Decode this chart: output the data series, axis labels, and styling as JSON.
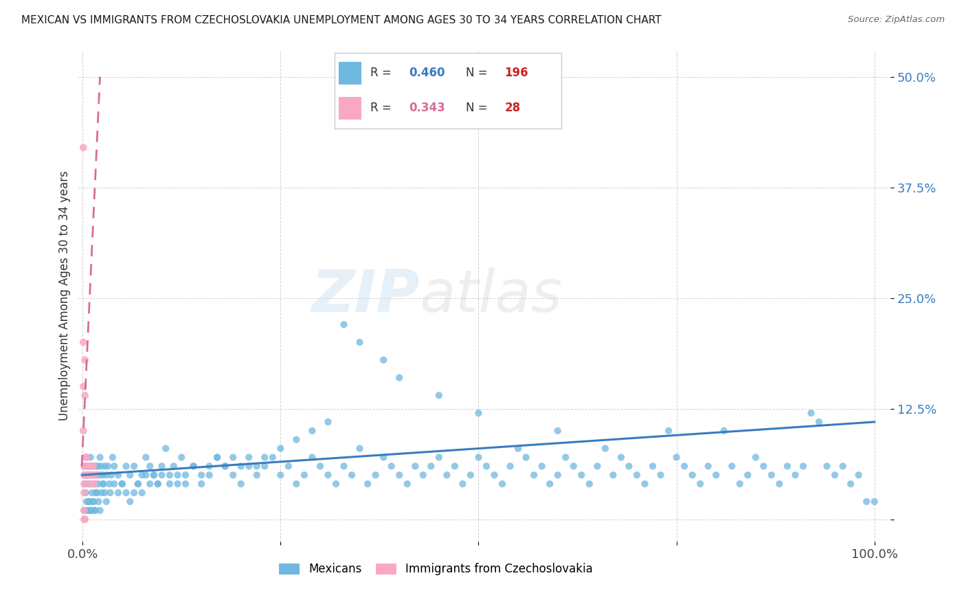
{
  "title": "MEXICAN VS IMMIGRANTS FROM CZECHOSLOVAKIA UNEMPLOYMENT AMONG AGES 30 TO 34 YEARS CORRELATION CHART",
  "source": "Source: ZipAtlas.com",
  "ylabel": "Unemployment Among Ages 30 to 34 years",
  "xlim": [
    -0.005,
    1.02
  ],
  "ylim": [
    -0.025,
    0.53
  ],
  "yticks": [
    0.0,
    0.125,
    0.25,
    0.375,
    0.5
  ],
  "ytick_labels": [
    "",
    "12.5%",
    "25.0%",
    "37.5%",
    "50.0%"
  ],
  "xticks": [
    0.0,
    0.25,
    0.5,
    0.75,
    1.0
  ],
  "xtick_labels": [
    "0.0%",
    "",
    "",
    "",
    "100.0%"
  ],
  "watermark_zip": "ZIP",
  "watermark_atlas": "atlas",
  "blue_R": 0.46,
  "blue_N": 196,
  "pink_R": 0.343,
  "pink_N": 28,
  "blue_color": "#6fb8e0",
  "pink_color": "#f9a8c4",
  "blue_line_color": "#3a7bbf",
  "pink_line_color": "#d96b9a",
  "blue_R_color": "#3a7bbf",
  "blue_N_color": "#cc2222",
  "pink_R_color": "#d96b9a",
  "pink_N_color": "#cc2222",
  "legend_blue_label": "Mexicans",
  "legend_pink_label": "Immigrants from Czechoslovakia",
  "blue_scatter_x": [
    0.002,
    0.003,
    0.004,
    0.005,
    0.006,
    0.007,
    0.008,
    0.009,
    0.01,
    0.011,
    0.012,
    0.014,
    0.015,
    0.016,
    0.017,
    0.018,
    0.019,
    0.02,
    0.021,
    0.022,
    0.023,
    0.025,
    0.026,
    0.028,
    0.03,
    0.032,
    0.034,
    0.036,
    0.038,
    0.04,
    0.045,
    0.05,
    0.055,
    0.06,
    0.065,
    0.07,
    0.075,
    0.08,
    0.085,
    0.09,
    0.095,
    0.1,
    0.105,
    0.11,
    0.115,
    0.12,
    0.125,
    0.13,
    0.14,
    0.15,
    0.16,
    0.17,
    0.18,
    0.19,
    0.2,
    0.21,
    0.22,
    0.23,
    0.24,
    0.25,
    0.26,
    0.27,
    0.28,
    0.29,
    0.3,
    0.31,
    0.32,
    0.33,
    0.34,
    0.35,
    0.36,
    0.37,
    0.38,
    0.39,
    0.4,
    0.41,
    0.42,
    0.43,
    0.44,
    0.45,
    0.46,
    0.47,
    0.48,
    0.49,
    0.5,
    0.51,
    0.52,
    0.53,
    0.54,
    0.55,
    0.56,
    0.57,
    0.58,
    0.59,
    0.6,
    0.61,
    0.62,
    0.63,
    0.64,
    0.65,
    0.66,
    0.67,
    0.68,
    0.69,
    0.7,
    0.71,
    0.72,
    0.73,
    0.74,
    0.75,
    0.76,
    0.77,
    0.78,
    0.79,
    0.8,
    0.81,
    0.82,
    0.83,
    0.84,
    0.85,
    0.86,
    0.87,
    0.88,
    0.89,
    0.9,
    0.91,
    0.92,
    0.93,
    0.94,
    0.95,
    0.96,
    0.97,
    0.98,
    0.99,
    1.0,
    0.003,
    0.005,
    0.007,
    0.009,
    0.011,
    0.013,
    0.015,
    0.017,
    0.002,
    0.004,
    0.006,
    0.008,
    0.01,
    0.012,
    0.014,
    0.016,
    0.018,
    0.02,
    0.022,
    0.024,
    0.026,
    0.028,
    0.03,
    0.035,
    0.04,
    0.045,
    0.05,
    0.055,
    0.06,
    0.065,
    0.07,
    0.075,
    0.08,
    0.085,
    0.09,
    0.095,
    0.1,
    0.11,
    0.12,
    0.13,
    0.14,
    0.15,
    0.16,
    0.17,
    0.18,
    0.19,
    0.2,
    0.21,
    0.22,
    0.23,
    0.25,
    0.27,
    0.29,
    0.31,
    0.33,
    0.35,
    0.38,
    0.4,
    0.45,
    0.5,
    0.6
  ],
  "blue_scatter_y": [
    0.05,
    0.06,
    0.04,
    0.07,
    0.05,
    0.06,
    0.04,
    0.05,
    0.07,
    0.06,
    0.05,
    0.06,
    0.05,
    0.04,
    0.06,
    0.05,
    0.06,
    0.04,
    0.05,
    0.07,
    0.06,
    0.05,
    0.04,
    0.06,
    0.05,
    0.06,
    0.04,
    0.05,
    0.07,
    0.06,
    0.05,
    0.04,
    0.06,
    0.05,
    0.06,
    0.04,
    0.05,
    0.07,
    0.06,
    0.05,
    0.04,
    0.06,
    0.08,
    0.05,
    0.06,
    0.04,
    0.07,
    0.05,
    0.06,
    0.04,
    0.05,
    0.07,
    0.06,
    0.05,
    0.04,
    0.06,
    0.05,
    0.06,
    0.07,
    0.05,
    0.06,
    0.04,
    0.05,
    0.07,
    0.06,
    0.05,
    0.04,
    0.06,
    0.05,
    0.08,
    0.04,
    0.05,
    0.07,
    0.06,
    0.05,
    0.04,
    0.06,
    0.05,
    0.06,
    0.07,
    0.05,
    0.06,
    0.04,
    0.05,
    0.07,
    0.06,
    0.05,
    0.04,
    0.06,
    0.08,
    0.07,
    0.05,
    0.06,
    0.04,
    0.05,
    0.07,
    0.06,
    0.05,
    0.04,
    0.06,
    0.08,
    0.05,
    0.07,
    0.06,
    0.05,
    0.04,
    0.06,
    0.05,
    0.1,
    0.07,
    0.06,
    0.05,
    0.04,
    0.06,
    0.05,
    0.1,
    0.06,
    0.04,
    0.05,
    0.07,
    0.06,
    0.05,
    0.04,
    0.06,
    0.05,
    0.06,
    0.12,
    0.11,
    0.06,
    0.05,
    0.06,
    0.04,
    0.05,
    0.02,
    0.02,
    0.0,
    0.02,
    0.01,
    0.02,
    0.01,
    0.02,
    0.01,
    0.03,
    0.01,
    0.03,
    0.01,
    0.02,
    0.01,
    0.03,
    0.02,
    0.01,
    0.03,
    0.02,
    0.01,
    0.03,
    0.04,
    0.03,
    0.02,
    0.03,
    0.04,
    0.03,
    0.04,
    0.03,
    0.02,
    0.03,
    0.04,
    0.03,
    0.05,
    0.04,
    0.05,
    0.04,
    0.05,
    0.04,
    0.05,
    0.04,
    0.06,
    0.05,
    0.06,
    0.07,
    0.06,
    0.07,
    0.06,
    0.07,
    0.06,
    0.07,
    0.08,
    0.09,
    0.1,
    0.11,
    0.22,
    0.2,
    0.18,
    0.16,
    0.14,
    0.12,
    0.1
  ],
  "pink_scatter_x": [
    0.001,
    0.001,
    0.001,
    0.001,
    0.002,
    0.002,
    0.002,
    0.003,
    0.003,
    0.004,
    0.004,
    0.005,
    0.005,
    0.006,
    0.007,
    0.008,
    0.009,
    0.01,
    0.011,
    0.012,
    0.013,
    0.014,
    0.015,
    0.017,
    0.002,
    0.003,
    0.002,
    0.002
  ],
  "pink_scatter_y": [
    0.42,
    0.2,
    0.15,
    0.1,
    0.06,
    0.05,
    0.04,
    0.18,
    0.14,
    0.07,
    0.05,
    0.07,
    0.05,
    0.06,
    0.05,
    0.06,
    0.04,
    0.05,
    0.06,
    0.04,
    0.05,
    0.06,
    0.04,
    0.05,
    0.0,
    0.0,
    0.01,
    0.03
  ],
  "blue_trend_x": [
    0.0,
    1.0
  ],
  "blue_trend_y": [
    0.05,
    0.11
  ],
  "pink_trend_x": [
    -0.001,
    0.022
  ],
  "pink_trend_y": [
    0.06,
    0.5
  ]
}
